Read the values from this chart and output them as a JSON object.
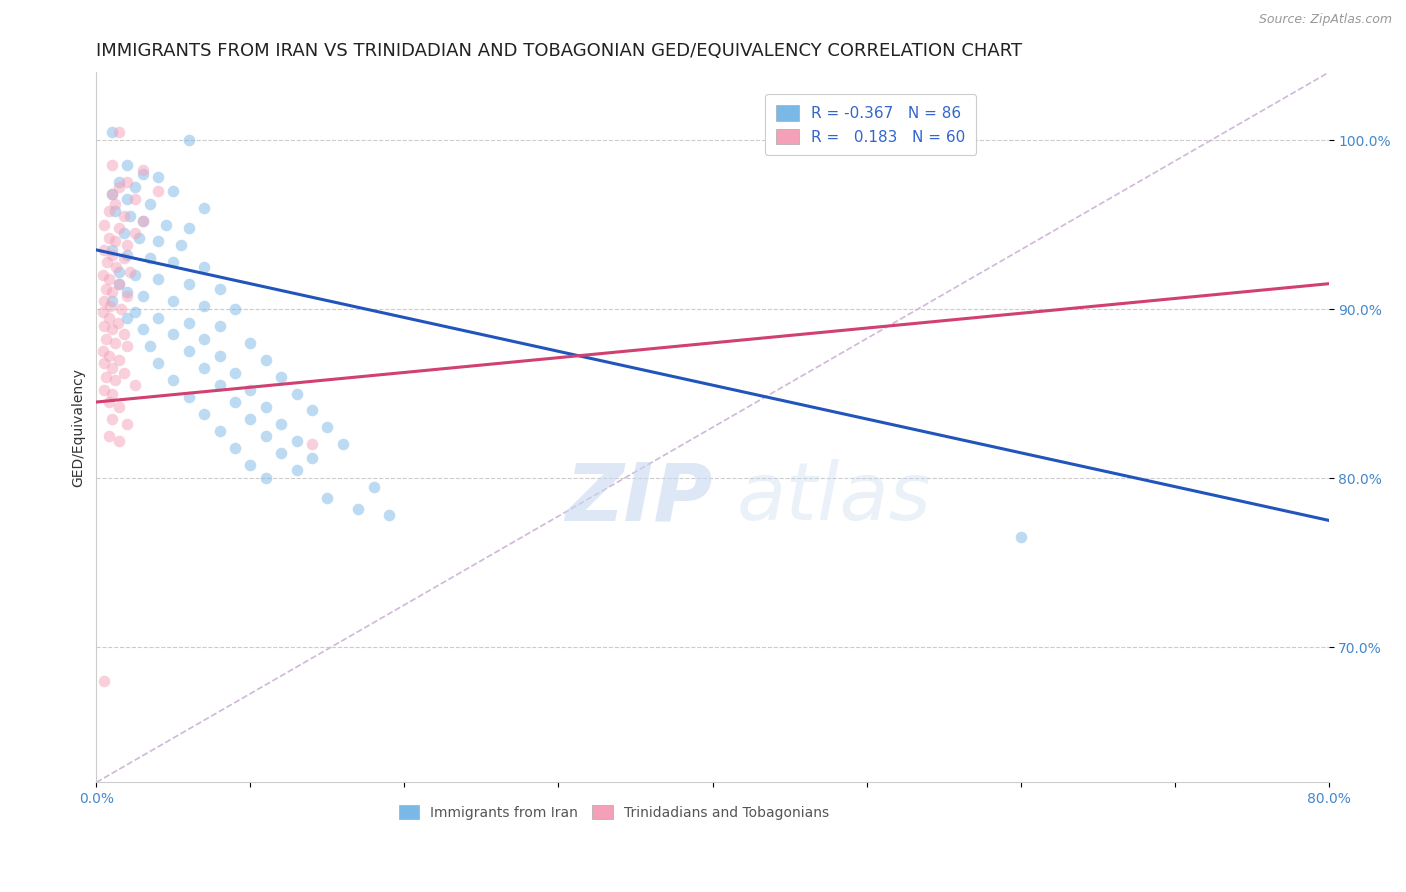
{
  "title": "IMMIGRANTS FROM IRAN VS TRINIDADIAN AND TOBAGONIAN GED/EQUIVALENCY CORRELATION CHART",
  "source": "Source: ZipAtlas.com",
  "ylabel": "GED/Equivalency",
  "yticks": [
    70.0,
    80.0,
    90.0,
    100.0
  ],
  "xlim": [
    0.0,
    80.0
  ],
  "ylim": [
    62.0,
    104.0
  ],
  "legend_entries": [
    {
      "label": "R = -0.367   N = 86",
      "color": "#a8c8f0"
    },
    {
      "label": "R =   0.183   N = 60",
      "color": "#f4a8c0"
    }
  ],
  "legend_bottom": [
    "Immigrants from Iran",
    "Trinidadians and Tobagonians"
  ],
  "blue_scatter": [
    [
      1.0,
      100.5
    ],
    [
      6.0,
      100.0
    ],
    [
      2.0,
      98.5
    ],
    [
      3.0,
      98.0
    ],
    [
      4.0,
      97.8
    ],
    [
      1.5,
      97.5
    ],
    [
      2.5,
      97.2
    ],
    [
      5.0,
      97.0
    ],
    [
      1.0,
      96.8
    ],
    [
      2.0,
      96.5
    ],
    [
      3.5,
      96.2
    ],
    [
      7.0,
      96.0
    ],
    [
      1.2,
      95.8
    ],
    [
      2.2,
      95.5
    ],
    [
      3.0,
      95.2
    ],
    [
      4.5,
      95.0
    ],
    [
      6.0,
      94.8
    ],
    [
      1.8,
      94.5
    ],
    [
      2.8,
      94.2
    ],
    [
      4.0,
      94.0
    ],
    [
      5.5,
      93.8
    ],
    [
      1.0,
      93.5
    ],
    [
      2.0,
      93.2
    ],
    [
      3.5,
      93.0
    ],
    [
      5.0,
      92.8
    ],
    [
      7.0,
      92.5
    ],
    [
      1.5,
      92.2
    ],
    [
      2.5,
      92.0
    ],
    [
      4.0,
      91.8
    ],
    [
      6.0,
      91.5
    ],
    [
      8.0,
      91.2
    ],
    [
      2.0,
      91.0
    ],
    [
      3.0,
      90.8
    ],
    [
      5.0,
      90.5
    ],
    [
      7.0,
      90.2
    ],
    [
      9.0,
      90.0
    ],
    [
      2.5,
      89.8
    ],
    [
      4.0,
      89.5
    ],
    [
      6.0,
      89.2
    ],
    [
      8.0,
      89.0
    ],
    [
      3.0,
      88.8
    ],
    [
      5.0,
      88.5
    ],
    [
      7.0,
      88.2
    ],
    [
      10.0,
      88.0
    ],
    [
      3.5,
      87.8
    ],
    [
      6.0,
      87.5
    ],
    [
      8.0,
      87.2
    ],
    [
      11.0,
      87.0
    ],
    [
      4.0,
      86.8
    ],
    [
      7.0,
      86.5
    ],
    [
      9.0,
      86.2
    ],
    [
      12.0,
      86.0
    ],
    [
      5.0,
      85.8
    ],
    [
      8.0,
      85.5
    ],
    [
      10.0,
      85.2
    ],
    [
      13.0,
      85.0
    ],
    [
      6.0,
      84.8
    ],
    [
      9.0,
      84.5
    ],
    [
      11.0,
      84.2
    ],
    [
      14.0,
      84.0
    ],
    [
      7.0,
      83.8
    ],
    [
      10.0,
      83.5
    ],
    [
      12.0,
      83.2
    ],
    [
      15.0,
      83.0
    ],
    [
      8.0,
      82.8
    ],
    [
      11.0,
      82.5
    ],
    [
      13.0,
      82.2
    ],
    [
      16.0,
      82.0
    ],
    [
      9.0,
      81.8
    ],
    [
      12.0,
      81.5
    ],
    [
      14.0,
      81.2
    ],
    [
      10.0,
      80.8
    ],
    [
      13.0,
      80.5
    ],
    [
      11.0,
      80.0
    ],
    [
      18.0,
      79.5
    ],
    [
      15.0,
      78.8
    ],
    [
      17.0,
      78.2
    ],
    [
      19.0,
      77.8
    ],
    [
      60.0,
      76.5
    ],
    [
      1.0,
      90.5
    ],
    [
      1.5,
      91.5
    ],
    [
      2.0,
      89.5
    ]
  ],
  "pink_scatter": [
    [
      1.5,
      100.5
    ],
    [
      1.0,
      98.5
    ],
    [
      3.0,
      98.2
    ],
    [
      2.0,
      97.5
    ],
    [
      1.5,
      97.2
    ],
    [
      4.0,
      97.0
    ],
    [
      1.0,
      96.8
    ],
    [
      2.5,
      96.5
    ],
    [
      1.2,
      96.2
    ],
    [
      0.8,
      95.8
    ],
    [
      1.8,
      95.5
    ],
    [
      3.0,
      95.2
    ],
    [
      0.5,
      95.0
    ],
    [
      1.5,
      94.8
    ],
    [
      2.5,
      94.5
    ],
    [
      0.8,
      94.2
    ],
    [
      1.2,
      94.0
    ],
    [
      2.0,
      93.8
    ],
    [
      0.5,
      93.5
    ],
    [
      1.0,
      93.2
    ],
    [
      1.8,
      93.0
    ],
    [
      0.7,
      92.8
    ],
    [
      1.3,
      92.5
    ],
    [
      2.2,
      92.2
    ],
    [
      0.4,
      92.0
    ],
    [
      0.8,
      91.8
    ],
    [
      1.5,
      91.5
    ],
    [
      0.6,
      91.2
    ],
    [
      1.0,
      91.0
    ],
    [
      2.0,
      90.8
    ],
    [
      0.5,
      90.5
    ],
    [
      0.9,
      90.2
    ],
    [
      1.6,
      90.0
    ],
    [
      0.4,
      89.8
    ],
    [
      0.8,
      89.5
    ],
    [
      1.4,
      89.2
    ],
    [
      0.5,
      89.0
    ],
    [
      1.0,
      88.8
    ],
    [
      1.8,
      88.5
    ],
    [
      0.6,
      88.2
    ],
    [
      1.2,
      88.0
    ],
    [
      2.0,
      87.8
    ],
    [
      0.4,
      87.5
    ],
    [
      0.8,
      87.2
    ],
    [
      1.5,
      87.0
    ],
    [
      0.5,
      86.8
    ],
    [
      1.0,
      86.5
    ],
    [
      1.8,
      86.2
    ],
    [
      0.6,
      86.0
    ],
    [
      1.2,
      85.8
    ],
    [
      2.5,
      85.5
    ],
    [
      0.5,
      85.2
    ],
    [
      1.0,
      85.0
    ],
    [
      0.8,
      84.5
    ],
    [
      1.5,
      84.2
    ],
    [
      1.0,
      83.5
    ],
    [
      2.0,
      83.2
    ],
    [
      0.8,
      82.5
    ],
    [
      1.5,
      82.2
    ],
    [
      14.0,
      82.0
    ],
    [
      0.5,
      68.0
    ]
  ],
  "blue_line_x": [
    0.0,
    80.0
  ],
  "blue_line_y": [
    93.5,
    77.5
  ],
  "pink_line_x": [
    0.0,
    80.0
  ],
  "pink_line_y": [
    84.5,
    91.5
  ],
  "diagonal_line_x": [
    0.0,
    80.0
  ],
  "diagonal_line_y": [
    62.0,
    104.0
  ],
  "scatter_alpha": 0.5,
  "scatter_size": 70,
  "blue_color": "#7ab8e8",
  "pink_color": "#f4a0b8",
  "blue_line_color": "#2255bb",
  "pink_line_color": "#d04070",
  "diagonal_color": "#d0b8d8",
  "background_color": "#ffffff",
  "grid_color": "#cccccc",
  "title_fontsize": 13,
  "axis_label_fontsize": 10,
  "tick_fontsize": 10,
  "legend_fontsize": 11
}
